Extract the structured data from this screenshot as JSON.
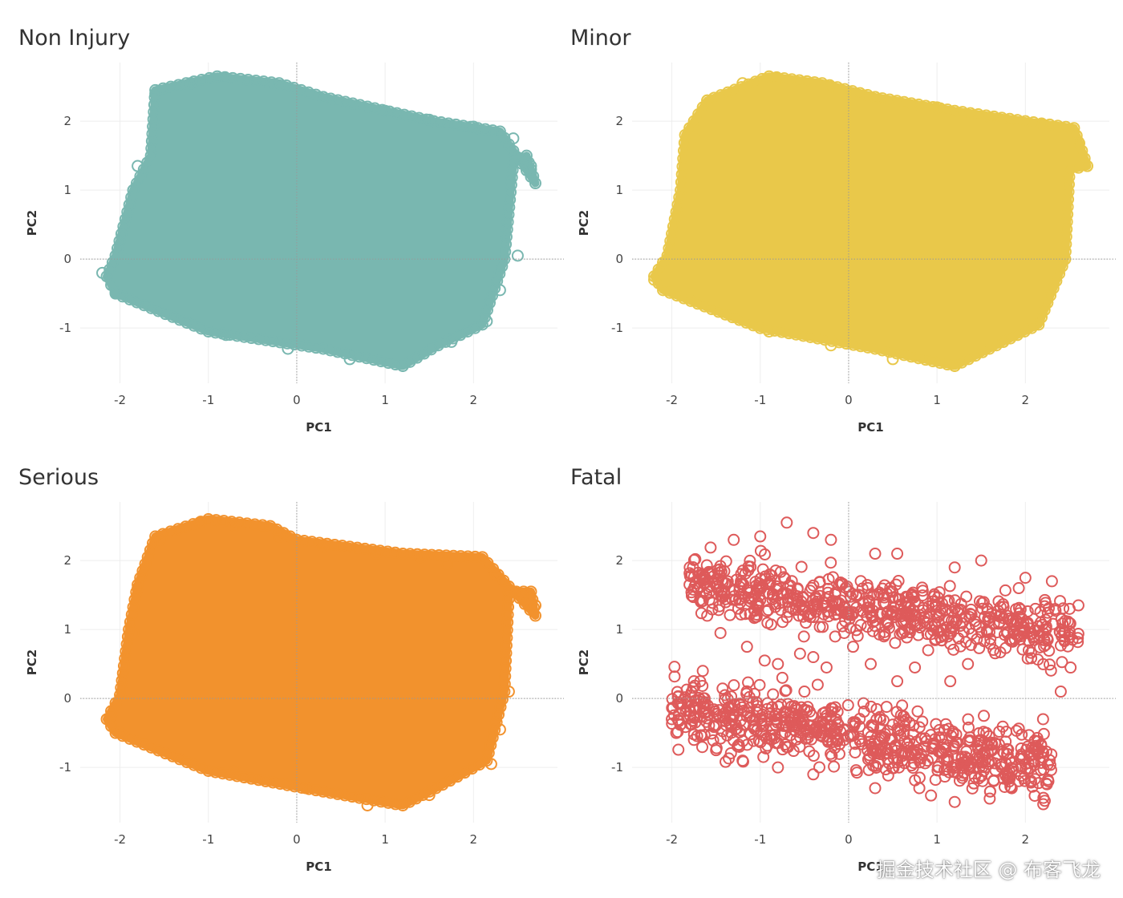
{
  "chart_data": [
    {
      "type": "scatter",
      "title": "Non Injury",
      "xlabel": "PC1",
      "ylabel": "PC2",
      "xlim": [
        -2.45,
        2.95
      ],
      "ylim": [
        -1.8,
        2.85
      ],
      "xticks": [
        -2,
        -1,
        0,
        1,
        2
      ],
      "yticks": [
        -1,
        0,
        1,
        2
      ],
      "grid": true,
      "zero_lines": true,
      "marker": "hollow-circle",
      "color": "#79b7b0",
      "density": "dense",
      "hull": [
        [
          -0.9,
          2.65
        ],
        [
          -1.6,
          2.45
        ],
        [
          -1.65,
          1.5
        ],
        [
          -1.85,
          1.0
        ],
        [
          -2.05,
          0.05
        ],
        [
          -2.15,
          -0.25
        ],
        [
          -2.05,
          -0.5
        ],
        [
          -1.0,
          -1.05
        ],
        [
          0.3,
          -1.3
        ],
        [
          1.2,
          -1.55
        ],
        [
          1.6,
          -1.25
        ],
        [
          2.1,
          -0.95
        ],
        [
          2.35,
          0.0
        ],
        [
          2.45,
          1.4
        ],
        [
          2.6,
          1.5
        ],
        [
          2.7,
          1.1
        ],
        [
          2.3,
          1.85
        ],
        [
          1.55,
          2.0
        ],
        [
          0.3,
          2.35
        ],
        [
          -0.2,
          2.55
        ]
      ],
      "sample_points": [
        [
          -2.2,
          -0.2
        ],
        [
          -2.05,
          -0.48
        ],
        [
          -1.9,
          0.0
        ],
        [
          -1.8,
          1.35
        ],
        [
          -1.85,
          1.0
        ],
        [
          -1.6,
          2.4
        ],
        [
          -1.2,
          2.55
        ],
        [
          -0.8,
          2.62
        ],
        [
          -0.2,
          2.52
        ],
        [
          0.3,
          2.35
        ],
        [
          1.0,
          2.15
        ],
        [
          1.5,
          2.02
        ],
        [
          2.0,
          1.92
        ],
        [
          2.45,
          1.75
        ],
        [
          2.65,
          1.35
        ],
        [
          2.5,
          0.05
        ],
        [
          2.3,
          -0.45
        ],
        [
          2.15,
          -0.9
        ],
        [
          1.75,
          -1.2
        ],
        [
          1.2,
          -1.55
        ],
        [
          0.6,
          -1.45
        ],
        [
          -0.1,
          -1.3
        ],
        [
          -0.8,
          -1.1
        ]
      ]
    },
    {
      "type": "scatter",
      "title": "Minor",
      "xlabel": "PC1",
      "ylabel": "PC2",
      "xlim": [
        -2.45,
        2.95
      ],
      "ylim": [
        -1.8,
        2.85
      ],
      "xticks": [
        -2,
        -1,
        0,
        1,
        2
      ],
      "yticks": [
        -1,
        0,
        1,
        2
      ],
      "grid": true,
      "zero_lines": true,
      "marker": "hollow-circle",
      "color": "#e9c84a",
      "density": "dense",
      "hull": [
        [
          -0.9,
          2.65
        ],
        [
          -1.6,
          2.3
        ],
        [
          -1.85,
          1.8
        ],
        [
          -1.9,
          1.0
        ],
        [
          -2.05,
          0.05
        ],
        [
          -2.2,
          -0.25
        ],
        [
          -2.1,
          -0.45
        ],
        [
          -1.0,
          -1.0
        ],
        [
          0.3,
          -1.3
        ],
        [
          1.2,
          -1.55
        ],
        [
          1.75,
          -1.2
        ],
        [
          2.15,
          -0.95
        ],
        [
          2.45,
          0.0
        ],
        [
          2.5,
          1.3
        ],
        [
          2.7,
          1.35
        ],
        [
          2.55,
          1.9
        ],
        [
          2.0,
          2.0
        ],
        [
          1.2,
          2.15
        ],
        [
          0.3,
          2.35
        ],
        [
          -0.3,
          2.55
        ]
      ],
      "sample_points": [
        [
          -2.2,
          -0.3
        ],
        [
          -2.05,
          -0.45
        ],
        [
          -1.85,
          1.05
        ],
        [
          -1.75,
          1.75
        ],
        [
          -1.6,
          2.3
        ],
        [
          -1.2,
          2.55
        ],
        [
          -0.8,
          2.62
        ],
        [
          -0.2,
          2.5
        ],
        [
          0.3,
          2.35
        ],
        [
          1.0,
          2.2
        ],
        [
          1.6,
          2.05
        ],
        [
          2.2,
          1.95
        ],
        [
          2.6,
          1.7
        ],
        [
          2.7,
          1.35
        ],
        [
          2.45,
          0.0
        ],
        [
          2.3,
          -0.4
        ],
        [
          2.15,
          -0.9
        ],
        [
          1.75,
          -1.2
        ],
        [
          1.2,
          -1.55
        ],
        [
          0.5,
          -1.45
        ],
        [
          -0.2,
          -1.25
        ],
        [
          -0.9,
          -1.05
        ]
      ]
    },
    {
      "type": "scatter",
      "title": "Serious",
      "xlabel": "PC1",
      "ylabel": "PC2",
      "xlim": [
        -2.45,
        2.95
      ],
      "ylim": [
        -1.8,
        2.85
      ],
      "xticks": [
        -2,
        -1,
        0,
        1,
        2
      ],
      "yticks": [
        -1,
        0,
        1,
        2
      ],
      "grid": true,
      "zero_lines": true,
      "marker": "hollow-circle",
      "color": "#f2922d",
      "density": "dense",
      "hull": [
        [
          -1.0,
          2.6
        ],
        [
          -1.6,
          2.35
        ],
        [
          -1.8,
          1.65
        ],
        [
          -1.9,
          1.0
        ],
        [
          -2.0,
          0.05
        ],
        [
          -2.15,
          -0.3
        ],
        [
          -2.05,
          -0.5
        ],
        [
          -1.0,
          -1.05
        ],
        [
          0.3,
          -1.35
        ],
        [
          1.2,
          -1.55
        ],
        [
          1.65,
          -1.25
        ],
        [
          2.15,
          -0.9
        ],
        [
          2.35,
          0.1
        ],
        [
          2.4,
          1.55
        ],
        [
          2.65,
          1.55
        ],
        [
          2.7,
          1.2
        ],
        [
          2.1,
          2.05
        ],
        [
          1.2,
          2.1
        ],
        [
          0.0,
          2.3
        ],
        [
          -0.3,
          2.5
        ]
      ],
      "sample_points": [
        [
          -2.1,
          -0.25
        ],
        [
          -2.0,
          -0.5
        ],
        [
          -1.85,
          0.95
        ],
        [
          -1.8,
          1.6
        ],
        [
          -1.55,
          2.3
        ],
        [
          -1.1,
          2.55
        ],
        [
          -0.7,
          2.5
        ],
        [
          -0.2,
          2.35
        ],
        [
          0.3,
          2.2
        ],
        [
          0.9,
          2.1
        ],
        [
          1.4,
          2.05
        ],
        [
          1.7,
          1.95
        ],
        [
          2.25,
          1.8
        ],
        [
          2.55,
          1.5
        ],
        [
          2.7,
          1.35
        ],
        [
          2.4,
          0.1
        ],
        [
          2.3,
          -0.45
        ],
        [
          2.2,
          -0.95
        ],
        [
          1.5,
          -1.4
        ],
        [
          0.8,
          -1.55
        ],
        [
          0.1,
          -1.3
        ],
        [
          -0.7,
          -1.05
        ]
      ]
    },
    {
      "type": "scatter",
      "title": "Fatal",
      "xlabel": "PC1",
      "ylabel": "PC2",
      "xlim": [
        -2.45,
        2.95
      ],
      "ylim": [
        -1.8,
        2.85
      ],
      "xticks": [
        -2,
        -1,
        0,
        1,
        2
      ],
      "yticks": [
        -1,
        0,
        1,
        2
      ],
      "grid": true,
      "zero_lines": true,
      "marker": "hollow-circle",
      "color": "#de5a5a",
      "density": "sparse-clustered",
      "sample_points": [
        [
          -2.0,
          -0.3
        ],
        [
          -1.95,
          -0.5
        ],
        [
          -1.75,
          -0.6
        ],
        [
          -1.5,
          -0.75
        ],
        [
          -1.2,
          -0.9
        ],
        [
          -0.8,
          -1.0
        ],
        [
          -0.4,
          -1.1
        ],
        [
          0.3,
          -1.3
        ],
        [
          0.8,
          -1.3
        ],
        [
          1.2,
          -1.5
        ],
        [
          1.6,
          -1.35
        ],
        [
          2.0,
          -0.95
        ],
        [
          2.2,
          -0.3
        ],
        [
          2.4,
          0.1
        ],
        [
          2.5,
          1.3
        ],
        [
          2.6,
          1.35
        ],
        [
          2.3,
          1.7
        ],
        [
          2.0,
          1.75
        ],
        [
          1.5,
          2.0
        ],
        [
          1.2,
          1.9
        ],
        [
          0.55,
          2.1
        ],
        [
          0.3,
          2.1
        ],
        [
          -0.2,
          2.3
        ],
        [
          -0.4,
          2.4
        ],
        [
          -0.7,
          2.55
        ],
        [
          -1.0,
          2.35
        ],
        [
          -1.3,
          2.3
        ],
        [
          -1.6,
          1.6
        ],
        [
          -1.8,
          1.65
        ],
        [
          -1.6,
          1.2
        ],
        [
          -1.45,
          0.95
        ],
        [
          -1.65,
          0.4
        ],
        [
          -1.75,
          0.25
        ],
        [
          -1.15,
          0.75
        ],
        [
          -0.95,
          0.55
        ],
        [
          -0.8,
          0.5
        ],
        [
          -0.75,
          0.3
        ],
        [
          -0.55,
          0.65
        ],
        [
          -0.5,
          0.1
        ],
        [
          -0.4,
          0.6
        ],
        [
          -0.35,
          0.2
        ],
        [
          -0.25,
          0.45
        ],
        [
          0.05,
          0.75
        ],
        [
          0.25,
          0.5
        ],
        [
          0.4,
          0.9
        ],
        [
          0.55,
          0.25
        ],
        [
          0.75,
          0.45
        ],
        [
          0.9,
          0.7
        ],
        [
          1.15,
          0.25
        ],
        [
          1.35,
          0.5
        ],
        [
          0.3,
          1.05
        ],
        [
          -0.05,
          0.95
        ]
      ]
    }
  ],
  "watermark": "掘金技术社区 @ 布客飞龙"
}
